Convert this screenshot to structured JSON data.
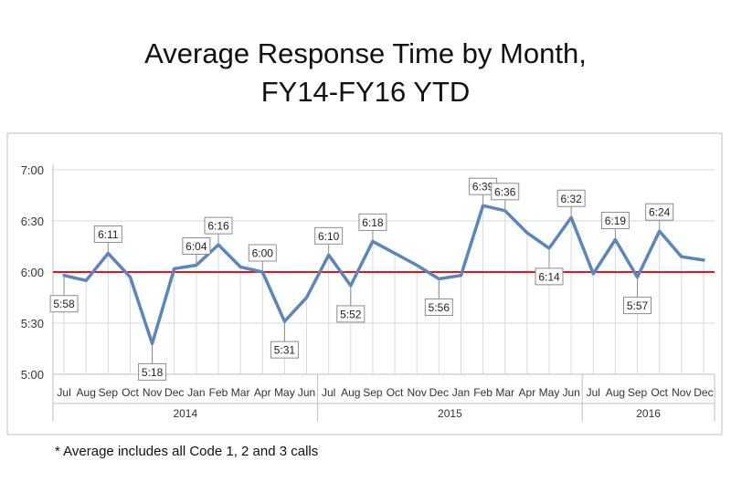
{
  "title": {
    "line1": "Average Response Time by Month,",
    "line2": "FY14-FY16 YTD"
  },
  "footnote": "* Average includes all Code 1, 2 and 3 calls",
  "colors": {
    "series_line": "#5b86bd",
    "target_line": "#e8141c",
    "grid": "#d9d9d9",
    "axis_text": "#333333",
    "frame": "#bfbfbf"
  },
  "chart_data": {
    "type": "line",
    "ylim": [
      "5:00",
      "7:00"
    ],
    "y_ticks": [
      "5:00",
      "5:30",
      "6:00",
      "6:30",
      "7:00"
    ],
    "grid": true,
    "reference_line": "6:00",
    "categories": [
      "Jul",
      "Aug",
      "Sep",
      "Oct",
      "Nov",
      "Dec",
      "Jan",
      "Feb",
      "Mar",
      "Apr",
      "May",
      "Jun",
      "Jul",
      "Aug",
      "Sep",
      "Oct",
      "Nov",
      "Dec",
      "Jan",
      "Feb",
      "Mar",
      "Apr",
      "May",
      "Jun",
      "Jul",
      "Aug",
      "Sep",
      "Oct",
      "Nov",
      "Dec"
    ],
    "year_groups": [
      {
        "label": "2014",
        "count": 12
      },
      {
        "label": "2015",
        "count": 12
      },
      {
        "label": "2016",
        "count": 6
      }
    ],
    "values": [
      "5:58",
      "5:55",
      "6:11",
      "5:57",
      "5:18",
      "6:02",
      "6:04",
      "6:16",
      "6:03",
      "6:00",
      "5:31",
      "5:45",
      "6:10",
      "5:52",
      "6:18",
      "6:11",
      "6:04",
      "5:56",
      "5:58",
      "6:39",
      "6:36",
      "6:23",
      "6:14",
      "6:32",
      "5:59",
      "6:19",
      "5:57",
      "6:24",
      "6:09",
      "6:07"
    ],
    "data_labels": [
      {
        "index": 0,
        "text": "5:58"
      },
      {
        "index": 2,
        "text": "6:11"
      },
      {
        "index": 4,
        "text": "5:18"
      },
      {
        "index": 6,
        "text": "6:04"
      },
      {
        "index": 7,
        "text": "6:16"
      },
      {
        "index": 9,
        "text": "6:00"
      },
      {
        "index": 10,
        "text": "5:31"
      },
      {
        "index": 12,
        "text": "6:10"
      },
      {
        "index": 13,
        "text": "5:52"
      },
      {
        "index": 14,
        "text": "6:18"
      },
      {
        "index": 17,
        "text": "5:56"
      },
      {
        "index": 19,
        "text": "6:39"
      },
      {
        "index": 20,
        "text": "6:36"
      },
      {
        "index": 22,
        "text": "6:14"
      },
      {
        "index": 23,
        "text": "6:32"
      },
      {
        "index": 25,
        "text": "6:19"
      },
      {
        "index": 26,
        "text": "5:57"
      },
      {
        "index": 27,
        "text": "6:24"
      }
    ]
  }
}
